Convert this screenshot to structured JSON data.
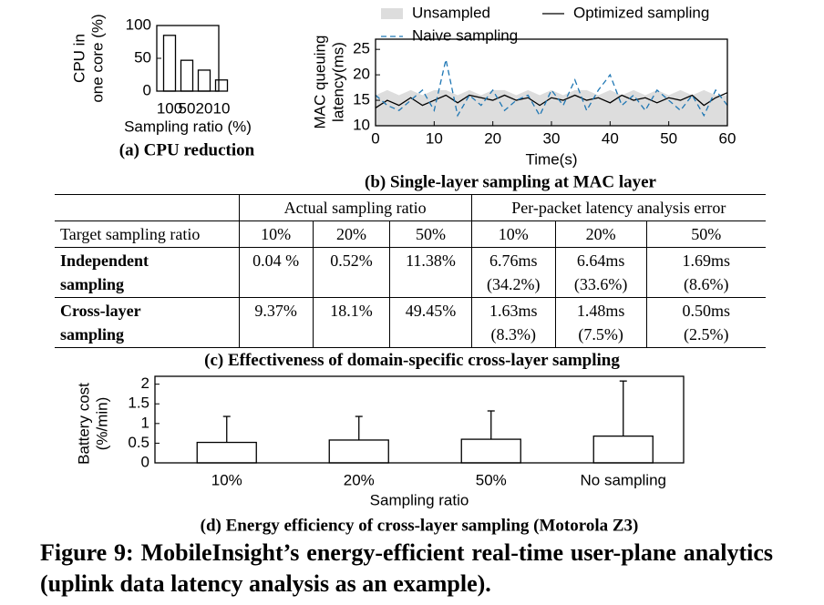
{
  "chart_data": [
    {
      "type": "bar",
      "title": "(a) CPU reduction",
      "ylabel": [
        "CPU in",
        "one core (%)"
      ],
      "xlabel": "Sampling ratio (%)",
      "categories": [
        "100",
        "50",
        "20",
        "10"
      ],
      "values": [
        85,
        47,
        32,
        17
      ],
      "color": "#ffffff",
      "ylim": [
        0,
        100
      ],
      "yticks": [
        0,
        50,
        100
      ]
    },
    {
      "type": "line",
      "title": "(b) Single-layer sampling at MAC layer",
      "ylabel": [
        "MAC queuing",
        "latency(ms)"
      ],
      "xlabel": "Time(s)",
      "x": [
        0,
        2,
        4,
        6,
        8,
        10,
        12,
        14,
        16,
        18,
        20,
        22,
        24,
        26,
        28,
        30,
        32,
        34,
        36,
        38,
        40,
        42,
        44,
        46,
        48,
        50,
        52,
        54,
        56,
        58,
        60
      ],
      "series": [
        {
          "name": "Unsampled",
          "color": "#dddddd",
          "fill": true,
          "values": [
            16,
            17,
            16,
            17,
            16,
            17,
            17,
            16,
            17,
            16,
            17,
            17,
            16,
            17,
            16,
            17,
            16,
            17,
            17,
            16,
            17,
            16,
            17,
            16,
            17,
            16,
            17,
            16,
            17,
            16,
            16
          ]
        },
        {
          "name": "Optimized sampling",
          "color": "#000000",
          "values": [
            13.5,
            15,
            14,
            15.5,
            14,
            15,
            16,
            14.5,
            16,
            15.5,
            15,
            16,
            15,
            15.5,
            14,
            15.5,
            15,
            16,
            15,
            15.5,
            14.5,
            16,
            15,
            15.5,
            14.5,
            15.5,
            15,
            16,
            14,
            15.5,
            16.5
          ]
        },
        {
          "name": "Naive sampling",
          "color": "#1f77b4",
          "dashed": true,
          "values": [
            16,
            14,
            13,
            15,
            17,
            13,
            23,
            12,
            16,
            14,
            17,
            13,
            15,
            16,
            12,
            17,
            14,
            19,
            13,
            17,
            20,
            14,
            16,
            13,
            17,
            15,
            13,
            16,
            12,
            17,
            14
          ]
        }
      ],
      "xlim": [
        0,
        60
      ],
      "xticks": [
        0,
        10,
        20,
        30,
        40,
        50,
        60
      ],
      "ylim": [
        10,
        27
      ],
      "yticks": [
        10,
        15,
        20,
        25
      ]
    },
    {
      "type": "bar",
      "title": "(d) Energy efficiency of cross-layer sampling (Motorola Z3)",
      "ylabel": [
        "Battery cost",
        "(%/min)"
      ],
      "xlabel": "Sampling ratio",
      "categories": [
        "10%",
        "20%",
        "50%",
        "No sampling"
      ],
      "values": [
        0.52,
        0.58,
        0.6,
        0.68
      ],
      "errors": [
        0.66,
        0.6,
        0.72,
        1.4
      ],
      "color": "#ffffff",
      "ylim": [
        0,
        2.2
      ],
      "yticks": [
        0,
        0.5,
        1,
        1.5,
        2
      ]
    }
  ],
  "table": {
    "group_headers": [
      "Actual sampling ratio",
      "Per-packet latency analysis error"
    ],
    "columns": [
      "Target sampling ratio",
      "10%",
      "20%",
      "50%",
      "10%",
      "20%",
      "50%"
    ],
    "rows": [
      [
        [
          "Independent",
          "sampling"
        ],
        [
          "0.04 %"
        ],
        [
          "0.52%"
        ],
        [
          "11.38%"
        ],
        [
          "6.76ms",
          "(34.2%)"
        ],
        [
          "6.64ms",
          "(33.6%)"
        ],
        [
          "1.69ms",
          "(8.6%)"
        ]
      ],
      [
        [
          "Cross-layer",
          "sampling"
        ],
        [
          "9.37%"
        ],
        [
          "18.1%"
        ],
        [
          "49.45%"
        ],
        [
          "1.63ms",
          "(8.3%)"
        ],
        [
          "1.48ms",
          "(7.5%)"
        ],
        [
          "0.50ms",
          "(2.5%)"
        ]
      ]
    ],
    "caption": "(c) Effectiveness of domain-specific cross-layer sampling"
  },
  "figure_caption": "Figure 9: MobileInsight’s energy-efficient real-time user-plane analytics (uplink data latency analysis as an example)."
}
